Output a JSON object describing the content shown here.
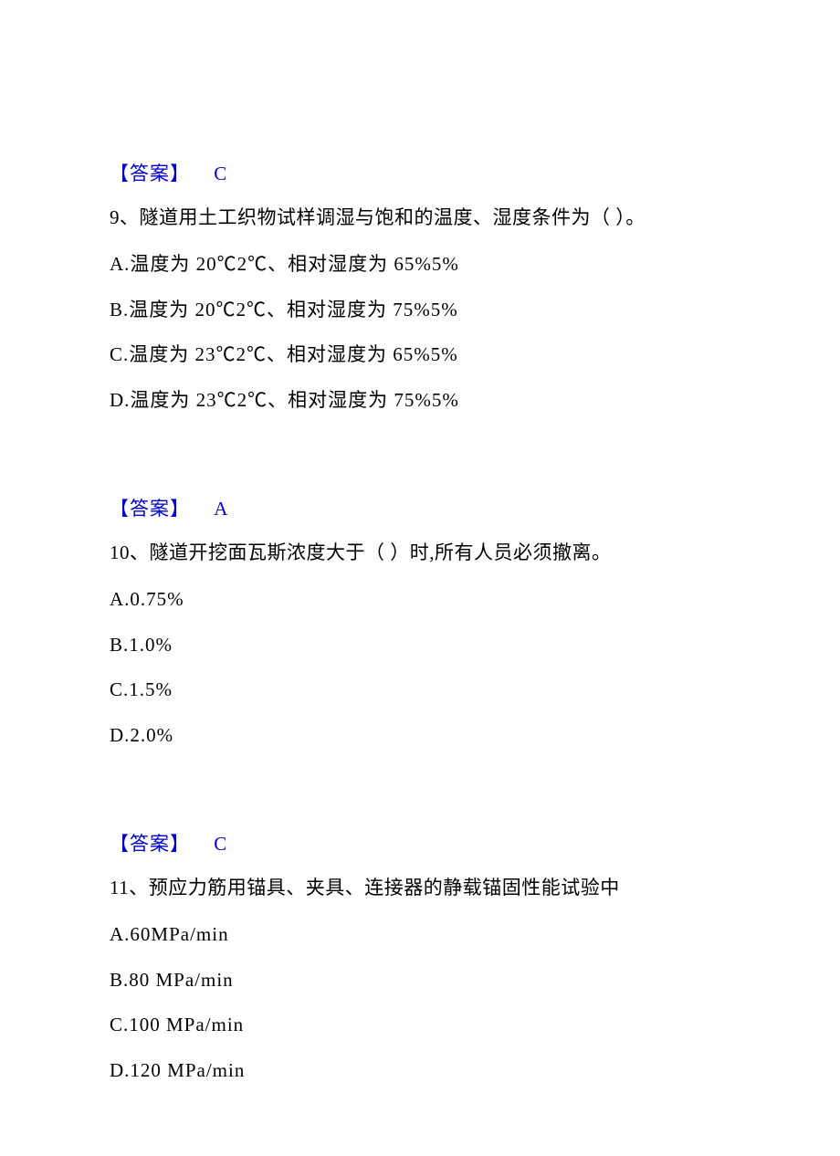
{
  "answers": {
    "label": "【答案】",
    "a8": "C",
    "a9": "A",
    "a10": "C"
  },
  "q9": {
    "stem": "9、隧道用土工织物试样调湿与饱和的温度、湿度条件为（ ）。",
    "optA": "A.温度为 20℃2℃、相对湿度为 65%5%",
    "optB": "B.温度为 20℃2℃、相对湿度为 75%5%",
    "optC": "C.温度为 23℃2℃、相对湿度为 65%5%",
    "optD": "D.温度为 23℃2℃、相对湿度为 75%5%"
  },
  "q10": {
    "stem": "10、隧道开挖面瓦斯浓度大于（   ）时,所有人员必须撤离。",
    "optA": "A.0.75%",
    "optB": "B.1.0%",
    "optC": "C.1.5%",
    "optD": "D.2.0%"
  },
  "q11": {
    "stem": "11、预应力筋用锚具、夹具、连接器的静载锚固性能试验中",
    "optA": "A.60MPa/min",
    "optB": "B.80 MPa/min",
    "optC": "C.100 MPa/min",
    "optD": "D.120 MPa/min"
  }
}
